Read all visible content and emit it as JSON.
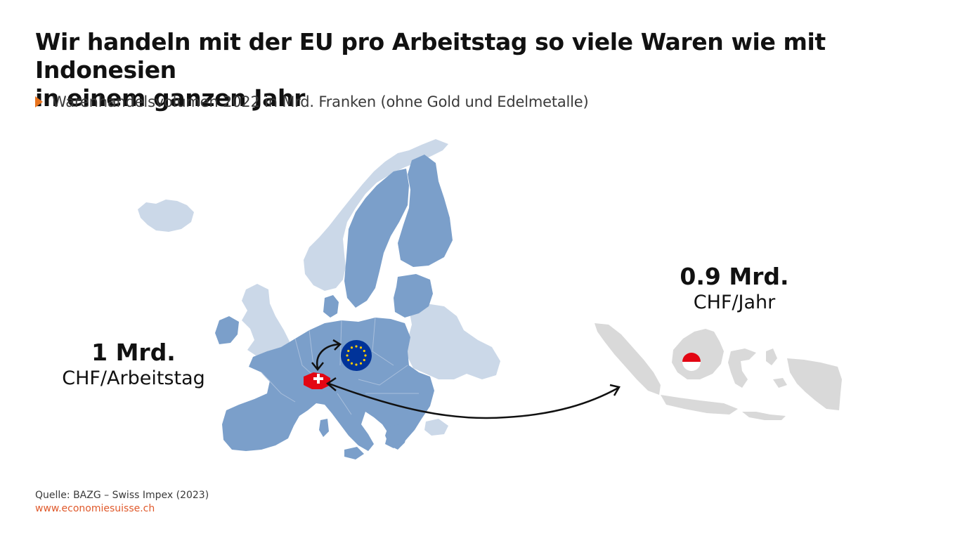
{
  "title": {
    "line1": "Wir handeln mit der EU pro Arbeitstag so viele Waren wie mit Indonesien",
    "line2": "in einem ganzen Jahr"
  },
  "subtitle": "Warenhandelsvolumen 2022 in Mrd. Franken (ohne Gold und Edelmetalle)",
  "eu_trade": {
    "value": "1 Mrd.",
    "unit": "CHF/Arbeitstag"
  },
  "indonesia_trade": {
    "value": "0.9 Mrd.",
    "unit": "CHF/Jahr"
  },
  "footer": {
    "source": "Quelle: BAZG – Swiss Impex (2023)",
    "url": "www.economiesuisse.ch"
  },
  "colors": {
    "eu_member": "#7b9fca",
    "non_eu": "#cbd8e8",
    "switzerland": "#e30613",
    "indonesia": "#d9d9d9",
    "eu_flag": "#003399",
    "eu_stars": "#ffcc00",
    "accent": "#e8731d",
    "arrow": "#111111"
  },
  "icons": {
    "eu_flag": "eu-flag-icon",
    "swiss_flag": "swiss-flag-icon",
    "indonesia_flag": "indonesia-flag-icon",
    "subtitle_marker": "triangle-marker-icon"
  }
}
